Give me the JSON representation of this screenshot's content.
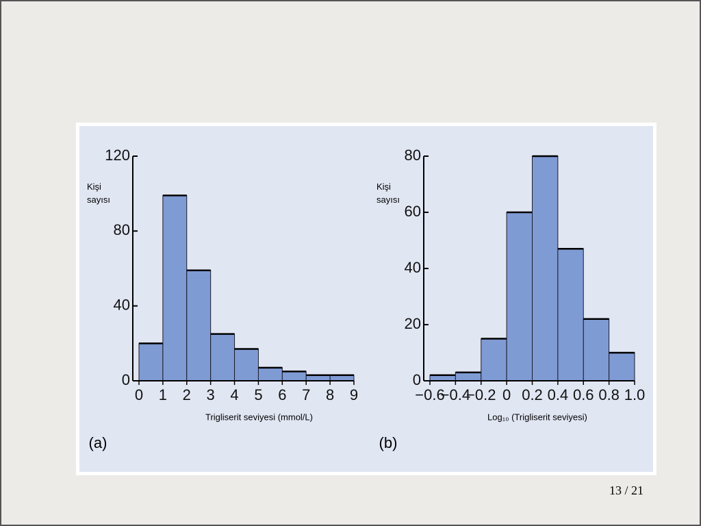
{
  "chart_data": [
    {
      "type": "histogram",
      "panel_label": "(a)",
      "y_label": "Kişi sayısı",
      "x_label": "Trigliserit seviyesi (mmol/L)",
      "bins": [
        0,
        1,
        2,
        3,
        4,
        5,
        6,
        7,
        8,
        9
      ],
      "counts": [
        20,
        99,
        59,
        25,
        17,
        7,
        5,
        3,
        3
      ],
      "color": "#7f9bd4",
      "xlim": [
        0,
        9
      ],
      "xticks": [
        0,
        1,
        2,
        3,
        4,
        5,
        6,
        7,
        8,
        9
      ],
      "ylim": [
        0,
        120
      ],
      "yticks": [
        0,
        40,
        80,
        120
      ]
    },
    {
      "type": "histogram",
      "panel_label": "(b)",
      "y_label": "Kişi sayısı",
      "x_label": "Log₁₀ (Trigliserit seviyesi)",
      "bins": [
        -0.6,
        -0.4,
        -0.2,
        0,
        0.2,
        0.4,
        0.6,
        0.8,
        1.0
      ],
      "counts": [
        2,
        3,
        15,
        60,
        80,
        47,
        22,
        10
      ],
      "color": "#7f9bd4",
      "xlim": [
        -0.6,
        1.0
      ],
      "xticks": [
        {
          "value": -0.6,
          "label": "−0.6"
        },
        {
          "value": -0.4,
          "label": "−0.4"
        },
        {
          "value": -0.2,
          "label": "−0.2"
        },
        0,
        0.2,
        0.4,
        0.6,
        0.8,
        {
          "value": 1.0,
          "label": "1.0"
        }
      ],
      "ylim": [
        0,
        80
      ],
      "yticks": [
        0,
        20,
        40,
        60,
        80
      ]
    }
  ],
  "page_number": "13 / 21"
}
